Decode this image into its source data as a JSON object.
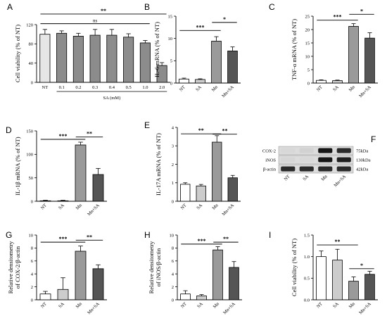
{
  "chart_data": [
    {
      "id": "A",
      "panel_label": "A",
      "type": "bar",
      "categories": [
        "NT",
        "0.1",
        "0.2",
        "0.3",
        "0.4",
        "0.5",
        "1.0",
        "2.0"
      ],
      "values": [
        100,
        102,
        96,
        98,
        98,
        94,
        82,
        35
      ],
      "errors": [
        10,
        5,
        6,
        12,
        12,
        7,
        5,
        6
      ],
      "fills": [
        "#e6e6e6",
        "#8c8c8c",
        "#8c8c8c",
        "#8c8c8c",
        "#8c8c8c",
        "#8c8c8c",
        "#8c8c8c",
        "#8c8c8c"
      ],
      "ylabel": "Cell viability (% of NT)",
      "xlabel": "SA (mM)",
      "ylim": [
        0,
        120
      ],
      "yticks": [
        0,
        40,
        80,
        120
      ],
      "annotations": [
        {
          "from": 0,
          "to": 7,
          "text": "**",
          "y": 142
        },
        {
          "from": 0,
          "to": 6,
          "text": "ns",
          "y": 122
        }
      ]
    },
    {
      "id": "B",
      "panel_label": "B",
      "type": "bar",
      "categories": [
        "NT",
        "SA",
        "Mn",
        "Mn+SA"
      ],
      "values": [
        0.9,
        0.8,
        9.4,
        7.2
      ],
      "errors": [
        0.2,
        0.15,
        1.0,
        0.9
      ],
      "fills": [
        "#ffffff",
        "#cccccc",
        "#9a9a9a",
        "#555555"
      ],
      "ylabel": "IL-6 mRNA (% of NT)",
      "ylim": [
        0,
        15
      ],
      "yticks": [
        0,
        5,
        10,
        15
      ],
      "annotations": [
        {
          "from": 0,
          "to": 2,
          "text": "***",
          "y": 11.8
        },
        {
          "from": 2,
          "to": 3,
          "text": "*",
          "y": 13.6
        }
      ]
    },
    {
      "id": "C",
      "panel_label": "C",
      "type": "bar",
      "categories": [
        "NT",
        "SA",
        "Mn",
        "Mn+SA"
      ],
      "values": [
        1.0,
        0.9,
        21.2,
        16.8
      ],
      "errors": [
        0.2,
        0.2,
        1.0,
        2.0
      ],
      "fills": [
        "#ffffff",
        "#cccccc",
        "#9a9a9a",
        "#555555"
      ],
      "ylabel": "TNF-α mRNA (% of NT)",
      "ylim": [
        0,
        25
      ],
      "yticks": [
        0,
        5,
        10,
        15,
        20,
        25
      ],
      "annotations": [
        {
          "from": 0,
          "to": 2,
          "text": "***",
          "y": 23.5
        },
        {
          "from": 2,
          "to": 3,
          "text": "*",
          "y": 25.7
        }
      ]
    },
    {
      "id": "D",
      "panel_label": "D",
      "type": "bar",
      "categories": [
        "NT",
        "SA",
        "Mn",
        "Mn+SA"
      ],
      "values": [
        1,
        1,
        120,
        57
      ],
      "errors": [
        1,
        1,
        6,
        13
      ],
      "fills": [
        "#ffffff",
        "#cccccc",
        "#9a9a9a",
        "#555555"
      ],
      "ylabel": "IL-1β mRNA (% of NT)",
      "ylim": [
        0,
        150
      ],
      "yticks": [
        0,
        50,
        100,
        150
      ],
      "annotations": [
        {
          "from": 0,
          "to": 2,
          "text": "***",
          "y": 132
        },
        {
          "from": 2,
          "to": 3,
          "text": "**",
          "y": 137
        }
      ]
    },
    {
      "id": "E",
      "panel_label": "E",
      "type": "bar",
      "categories": [
        "NT",
        "SA",
        "Mn",
        "Mn+SA"
      ],
      "values": [
        0.92,
        0.83,
        3.2,
        1.27
      ],
      "errors": [
        0.08,
        0.08,
        0.35,
        0.13
      ],
      "fills": [
        "#ffffff",
        "#cccccc",
        "#9a9a9a",
        "#555555"
      ],
      "ylabel": "IL-17A mRNA (% of NT)",
      "ylim": [
        0,
        4
      ],
      "yticks": [
        0,
        1,
        2,
        3,
        4
      ],
      "annotations": [
        {
          "from": 0,
          "to": 2,
          "text": "**",
          "y": 3.65
        },
        {
          "from": 2,
          "to": 3,
          "text": "**",
          "y": 3.63
        }
      ]
    },
    {
      "id": "G",
      "panel_label": "G",
      "type": "bar",
      "categories": [
        "NT",
        "SA",
        "Mn",
        "Mn+SA"
      ],
      "values": [
        0.9,
        1.6,
        7.5,
        4.8
      ],
      "errors": [
        0.4,
        1.8,
        0.8,
        0.6
      ],
      "fills": [
        "#ffffff",
        "#cccccc",
        "#9a9a9a",
        "#555555"
      ],
      "ylabel": "Relative densitometry",
      "ylabel2": "of COX-2/β-actin",
      "ylim": [
        0,
        10
      ],
      "yticks": [
        0,
        2,
        4,
        6,
        8,
        10
      ],
      "annotations": [
        {
          "from": 0,
          "to": 2,
          "text": "***",
          "y": 8.9
        },
        {
          "from": 2,
          "to": 3,
          "text": "**",
          "y": 9.2
        }
      ]
    },
    {
      "id": "H",
      "panel_label": "H",
      "type": "bar",
      "categories": [
        "NT",
        "SA",
        "Mn",
        "Mn+SA"
      ],
      "values": [
        0.9,
        0.6,
        7.7,
        5.0
      ],
      "errors": [
        0.5,
        0.2,
        0.5,
        0.9
      ],
      "fills": [
        "#ffffff",
        "#cccccc",
        "#9a9a9a",
        "#555555"
      ],
      "ylabel": "Relative densitometry",
      "ylabel2": "of iNOS/β-actin",
      "ylim": [
        0,
        10
      ],
      "yticks": [
        0,
        2,
        4,
        6,
        8,
        10
      ],
      "annotations": [
        {
          "from": 0,
          "to": 2,
          "text": "***",
          "y": 8.6
        },
        {
          "from": 2,
          "to": 3,
          "text": "**",
          "y": 8.9
        }
      ]
    },
    {
      "id": "I",
      "panel_label": "I",
      "type": "bar",
      "categories": [
        "NT",
        "SA",
        "Mn",
        "Mn+SA"
      ],
      "values": [
        1.0,
        0.92,
        0.43,
        0.59
      ],
      "errors": [
        0.13,
        0.25,
        0.1,
        0.07
      ],
      "fills": [
        "#ffffff",
        "#cccccc",
        "#9a9a9a",
        "#555555"
      ],
      "ylabel": "Cell viability (% of NT)",
      "ylim": [
        0,
        1.5
      ],
      "yticks": [
        0.0,
        0.5,
        1.0,
        1.5
      ],
      "annotations": [
        {
          "from": 0,
          "to": 2,
          "text": "**",
          "y": 1.27
        },
        {
          "from": 2,
          "to": 3,
          "text": "*",
          "y": 0.72
        }
      ]
    }
  ],
  "blot": {
    "panel_label": "F",
    "rows": [
      {
        "protein": "COX-2",
        "size": "75kDa",
        "intensity": [
          0.02,
          0.05,
          0.95,
          0.85
        ]
      },
      {
        "protein": "iNOS",
        "size": "130kDa",
        "intensity": [
          0.03,
          0.02,
          0.95,
          0.9
        ]
      },
      {
        "protein": "β-actin",
        "size": "42kDa",
        "intensity": [
          0.85,
          0.85,
          0.85,
          0.85
        ]
      }
    ],
    "lanes": [
      "NT",
      "SA",
      "Mn",
      "Mn+SA"
    ]
  }
}
